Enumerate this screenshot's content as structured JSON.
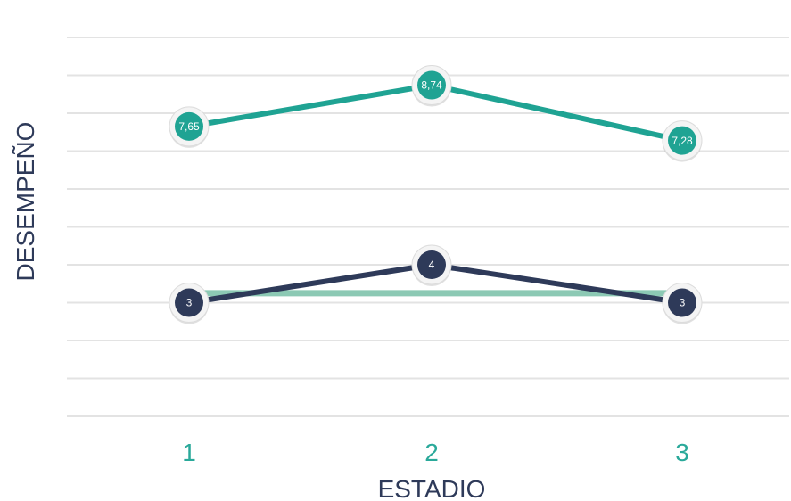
{
  "chart_data": {
    "type": "line",
    "xlabel": "ESTADIO",
    "ylabel": "DESEMPEÑO",
    "categories": [
      "1",
      "2",
      "3"
    ],
    "ylim": [
      0,
      10
    ],
    "grid": true,
    "series": [
      {
        "values": [
          7.65,
          8.74,
          7.28
        ],
        "labels": [
          "7,65",
          "8,74",
          "7,28"
        ],
        "color": "#1fa393",
        "markers": true
      },
      {
        "values": [
          3.25,
          3.25,
          3.25
        ],
        "color": "#8cc9b4",
        "markers": false
      },
      {
        "values": [
          3,
          4,
          3
        ],
        "labels": [
          "3",
          "4",
          "3"
        ],
        "color": "#2e3a59",
        "markers": true
      }
    ]
  }
}
